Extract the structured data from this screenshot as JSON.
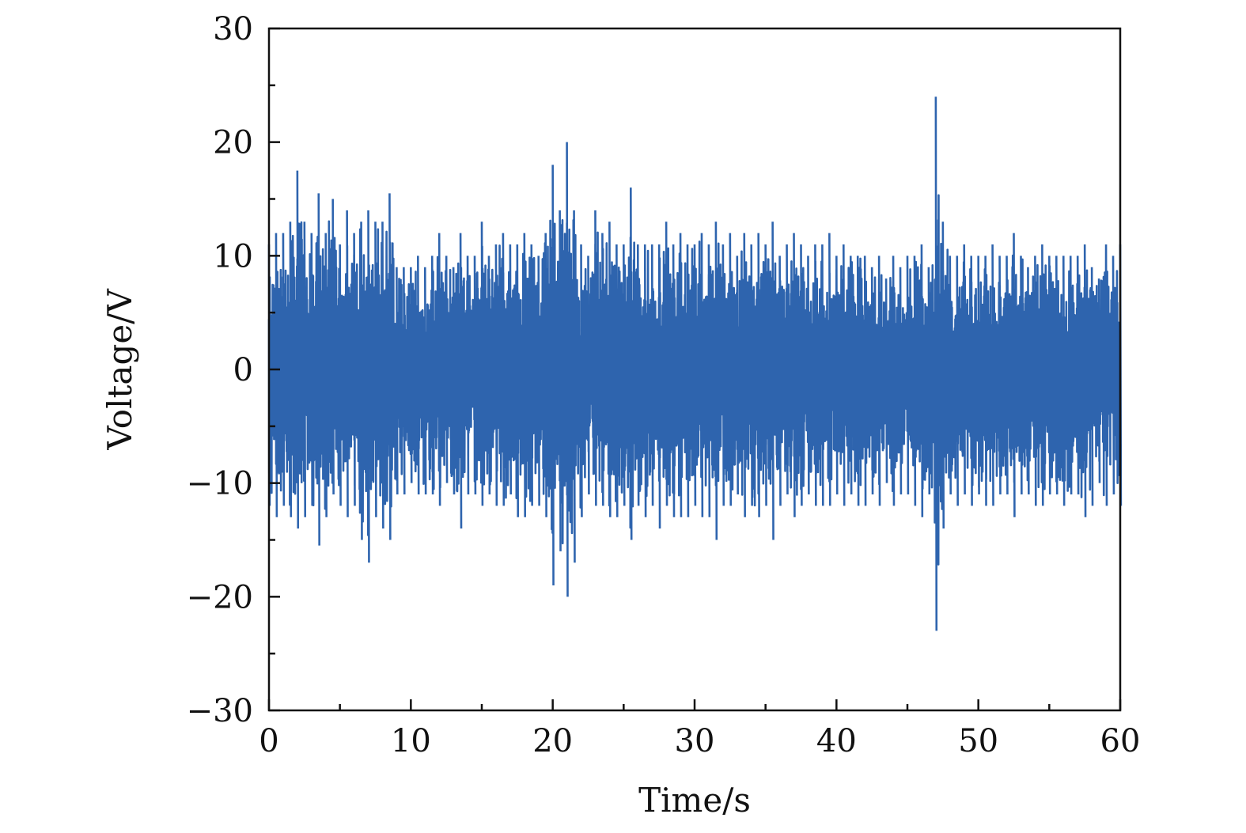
{
  "chart_data": {
    "type": "line",
    "title": "",
    "xlabel": "Time/s",
    "ylabel": "Voltage/V",
    "xlim": [
      0,
      60
    ],
    "ylim": [
      -30,
      30
    ],
    "x_ticks": [
      0,
      10,
      20,
      30,
      40,
      50,
      60
    ],
    "y_ticks": [
      30,
      20,
      10,
      0,
      -10,
      -20,
      -30
    ],
    "x_tick_labels": [
      "0",
      "10",
      "20",
      "30",
      "40",
      "50",
      "60"
    ],
    "y_tick_labels": [
      "30",
      "20",
      "10",
      "0",
      "−10",
      "−20",
      "−30"
    ],
    "grid": false,
    "legend": "none",
    "series_color": "#2e64ae",
    "series": [
      {
        "x": [
          0,
          0.5,
          1,
          1.5,
          2,
          2.5,
          3,
          3.5,
          4,
          4.5,
          5,
          5.5,
          6,
          6.5,
          7,
          7.5,
          8,
          8.5,
          9,
          9.5,
          10,
          10.5,
          11,
          11.5,
          12,
          12.5,
          13,
          13.5,
          14,
          14.5,
          15,
          15.5,
          16,
          16.5,
          17,
          17.5,
          18,
          18.5,
          19,
          19.5,
          20,
          20.5,
          21,
          21.5,
          22,
          22.5,
          23,
          23.5,
          24,
          24.5,
          25,
          25.5,
          26,
          26.5,
          27,
          27.5,
          28,
          28.5,
          29,
          29.5,
          30,
          30.5,
          31,
          31.5,
          32,
          32.5,
          33,
          33.5,
          34,
          34.5,
          35,
          35.5,
          36,
          36.5,
          37,
          37.5,
          38,
          38.5,
          39,
          39.5,
          40,
          40.5,
          41,
          41.5,
          42,
          42.5,
          43,
          43.5,
          44,
          44.5,
          45,
          45.5,
          46,
          46.5,
          47,
          47.5,
          48,
          48.5,
          49,
          49.5,
          50,
          50.5,
          51,
          51.5,
          52,
          52.5,
          53,
          53.5,
          54,
          54.5,
          55,
          55.5,
          56,
          56.5,
          57,
          57.5,
          58,
          58.5,
          59,
          59.5,
          60
        ],
        "envelope_upper": [
          11,
          12,
          12,
          13,
          17.5,
          13,
          12,
          15.5,
          12,
          15,
          11,
          14,
          12,
          13,
          14,
          13,
          13,
          15.5,
          9,
          9,
          9,
          10,
          9,
          10,
          12,
          10,
          9,
          12,
          10,
          10,
          13,
          10,
          11,
          12,
          11,
          11,
          12,
          11,
          10,
          12,
          18,
          14,
          20,
          14,
          11,
          10,
          14,
          12,
          13,
          11,
          11,
          16,
          11,
          11,
          11,
          11,
          13,
          11,
          12,
          11,
          11,
          12,
          11,
          13,
          11,
          12,
          10,
          12,
          11,
          12,
          11,
          13,
          10,
          11,
          12,
          11,
          10,
          11,
          11,
          12,
          10,
          11,
          10,
          10,
          10,
          9,
          10,
          8,
          10,
          9,
          10,
          10,
          11,
          9,
          24,
          13,
          10,
          10,
          11,
          10,
          10,
          10,
          11,
          10,
          10,
          12,
          10,
          9,
          10,
          11,
          10,
          10,
          10,
          10,
          10,
          11,
          9,
          8,
          11,
          10,
          11
        ],
        "envelope_lower": [
          -12,
          -13,
          -12,
          -13,
          -14,
          -13,
          -12,
          -15.5,
          -13,
          -11,
          -12,
          -13,
          -12,
          -15,
          -17,
          -13,
          -14,
          -15,
          -11,
          -11,
          -10,
          -11,
          -11,
          -11,
          -12,
          -10,
          -11,
          -14,
          -11,
          -11,
          -12,
          -11,
          -12,
          -12,
          -11,
          -13,
          -13,
          -12,
          -12,
          -13,
          -19,
          -16,
          -20,
          -17,
          -13,
          -11,
          -12,
          -12,
          -13,
          -13,
          -12,
          -15,
          -12,
          -13,
          -12,
          -14,
          -12,
          -13,
          -13,
          -13,
          -12,
          -13,
          -13,
          -15,
          -12,
          -12,
          -11,
          -13,
          -12,
          -13,
          -12,
          -15,
          -12,
          -11,
          -13,
          -12,
          -11,
          -12,
          -12,
          -12,
          -11,
          -12,
          -11,
          -12,
          -12,
          -11,
          -12,
          -10,
          -12,
          -11,
          -11,
          -12,
          -13,
          -11,
          -23,
          -14,
          -11,
          -12,
          -11,
          -12,
          -11,
          -12,
          -12,
          -11,
          -11,
          -13,
          -11,
          -11,
          -12,
          -12,
          -11,
          -11,
          -12,
          -11,
          -11,
          -13,
          -12,
          -10,
          -12,
          -11,
          -12
        ]
      }
    ]
  }
}
